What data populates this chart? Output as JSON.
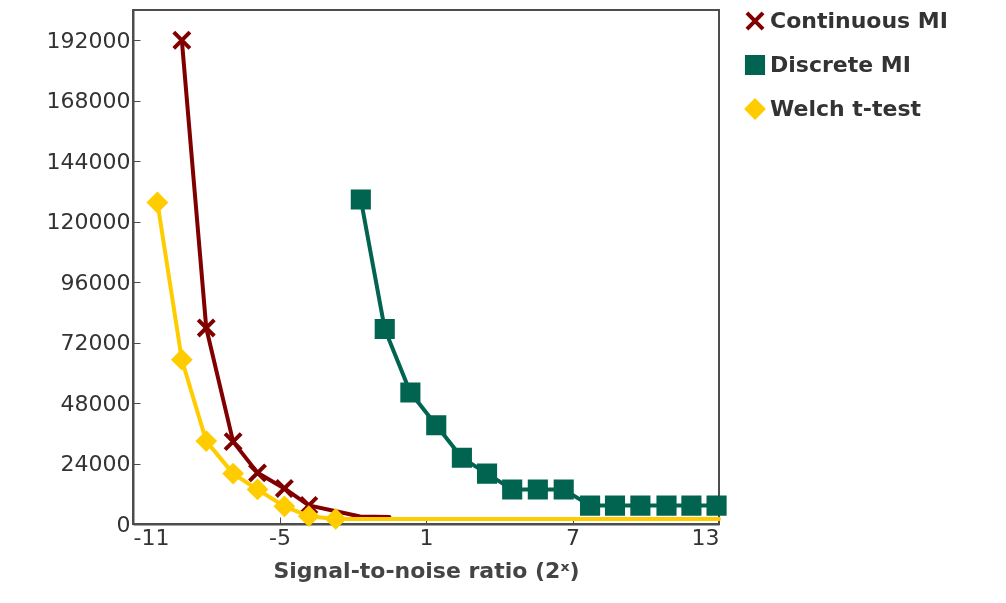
{
  "chart_data": {
    "type": "line",
    "xlabel": "Signal-to-noise ratio (2ˣ)",
    "xlim": [
      -11,
      13
    ],
    "xticks": [
      -11,
      -5,
      1,
      7,
      13
    ],
    "ylim": [
      0,
      204000
    ],
    "yticks": [
      0,
      24000,
      48000,
      72000,
      96000,
      120000,
      144000,
      168000,
      192000
    ],
    "legend": "right",
    "grid": false,
    "line_style": "solid",
    "series": [
      {
        "name": "Continuous MI",
        "color": "#800000",
        "marker": "cross",
        "x": [
          -9,
          -8,
          -6.9,
          -5.9,
          -4.8,
          -3.8
        ],
        "values": [
          192000,
          77800,
          32700,
          20300,
          14100,
          7400
        ]
      },
      {
        "name": "Discrete MI",
        "color": "#006450",
        "marker": "square",
        "x": [
          -1.67,
          -0.69,
          0.36,
          1.42,
          2.47,
          3.5,
          4.53,
          5.58,
          6.64,
          7.72,
          8.74,
          9.78,
          10.85,
          11.87,
          12.9
        ],
        "values": [
          128800,
          77400,
          52200,
          39200,
          26300,
          20000,
          13700,
          13700,
          13700,
          7300,
          7300,
          7300,
          7300,
          7300,
          7300
        ]
      },
      {
        "color": "#800000",
        "marker": "none",
        "type": "line",
        "x": [
          -3.8,
          -1.7,
          -0.5
        ],
        "values": [
          7400,
          3000,
          2800
        ]
      },
      {
        "name": "Welch t-test",
        "color": "#ffcc00",
        "marker": "diamond",
        "x": [
          -10,
          -9,
          -8,
          -6.9,
          -5.9,
          -4.8,
          -3.8,
          -2.7
        ],
        "values": [
          127600,
          65200,
          32900,
          20000,
          13700,
          7000,
          3100,
          2000
        ]
      },
      {
        "color": "#ffcc00",
        "marker": "none",
        "type": "line",
        "x": [
          -2.7,
          13
        ],
        "values": [
          2000,
          2000
        ]
      }
    ]
  }
}
